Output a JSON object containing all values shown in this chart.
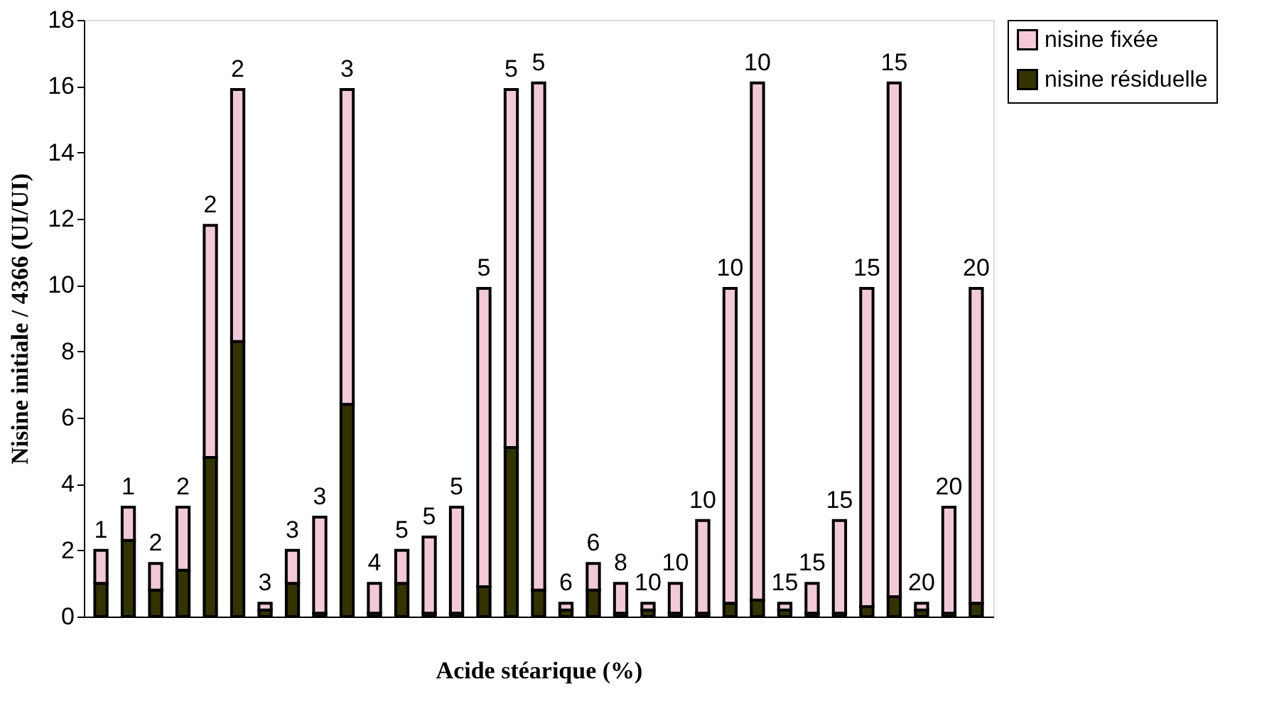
{
  "chart_data": {
    "type": "bar",
    "stacked": true,
    "xlabel": "Acide stéarique (%)",
    "ylabel": "Nisine initiale / 4366 (UI/UI)",
    "categories": [
      null,
      null,
      null,
      null,
      null,
      null,
      null,
      null,
      null,
      null,
      null,
      null,
      null,
      null,
      null,
      null,
      null,
      null,
      null,
      null,
      null,
      null,
      null,
      null,
      null,
      null,
      null,
      null,
      null,
      null,
      null,
      null,
      null
    ],
    "series": [
      {
        "name": "nisine résiduelle",
        "color": "#333300",
        "values": [
          1.0,
          2.3,
          0.8,
          1.4,
          4.8,
          8.3,
          0.2,
          1.0,
          0.1,
          6.4,
          0.1,
          1.0,
          0.1,
          0.1,
          0.9,
          5.1,
          0.8,
          0.2,
          0.8,
          0.1,
          0.2,
          0.1,
          0.1,
          0.4,
          0.5,
          0.2,
          0.1,
          0.1,
          0.3,
          0.6,
          0.2,
          0.1,
          0.4
        ]
      },
      {
        "name": "nisine fixée",
        "color": "#f2c9d9",
        "values": [
          1.0,
          1.0,
          0.8,
          1.9,
          7.0,
          7.6,
          0.2,
          1.0,
          2.9,
          9.5,
          0.9,
          1.0,
          2.3,
          3.2,
          9.0,
          10.8,
          15.3,
          0.2,
          0.8,
          0.9,
          0.2,
          0.9,
          2.8,
          9.5,
          15.6,
          0.2,
          0.9,
          2.8,
          9.6,
          15.5,
          0.2,
          3.2,
          9.5
        ]
      }
    ],
    "annotations": [
      {
        "text": "1",
        "y": 2.0
      },
      {
        "text": "1",
        "y": 3.3
      },
      {
        "text": "2",
        "y": 1.6
      },
      {
        "text": "2",
        "y": 3.3
      },
      {
        "text": "2",
        "y": 11.8
      },
      {
        "text": "2",
        "y": 15.9
      },
      {
        "text": "3",
        "y": 0.4
      },
      {
        "text": "3",
        "y": 2.0
      },
      {
        "text": "3",
        "y": 3.0
      },
      {
        "text": "3",
        "y": 15.9
      },
      {
        "text": "4",
        "y": 1.0
      },
      {
        "text": "5",
        "y": 2.0
      },
      {
        "text": "5",
        "y": 2.4
      },
      {
        "text": "5",
        "y": 3.3
      },
      {
        "text": "5",
        "y": 9.9
      },
      {
        "text": "5",
        "y": 15.9
      },
      {
        "text": "5",
        "y": 16.1
      },
      {
        "text": "6",
        "y": 0.4
      },
      {
        "text": "6",
        "y": 1.6
      },
      {
        "text": "8",
        "y": 1.0
      },
      {
        "text": "10",
        "y": 0.4
      },
      {
        "text": "10",
        "y": 1.0
      },
      {
        "text": "10",
        "y": 2.9
      },
      {
        "text": "10",
        "y": 9.9
      },
      {
        "text": "10",
        "y": 16.1
      },
      {
        "text": "15",
        "y": 0.4
      },
      {
        "text": "15",
        "y": 1.0
      },
      {
        "text": "15",
        "y": 2.9
      },
      {
        "text": "15",
        "y": 9.9
      },
      {
        "text": "15",
        "y": 16.1
      },
      {
        "text": "20",
        "y": 0.4
      },
      {
        "text": "20",
        "y": 3.3
      },
      {
        "text": "20",
        "y": 9.9
      }
    ],
    "ylim": [
      0,
      18
    ],
    "yticks": [
      0,
      2,
      4,
      6,
      8,
      10,
      12,
      14,
      16,
      18
    ],
    "grid": false,
    "legend": "top right",
    "tick_labels": "y"
  }
}
